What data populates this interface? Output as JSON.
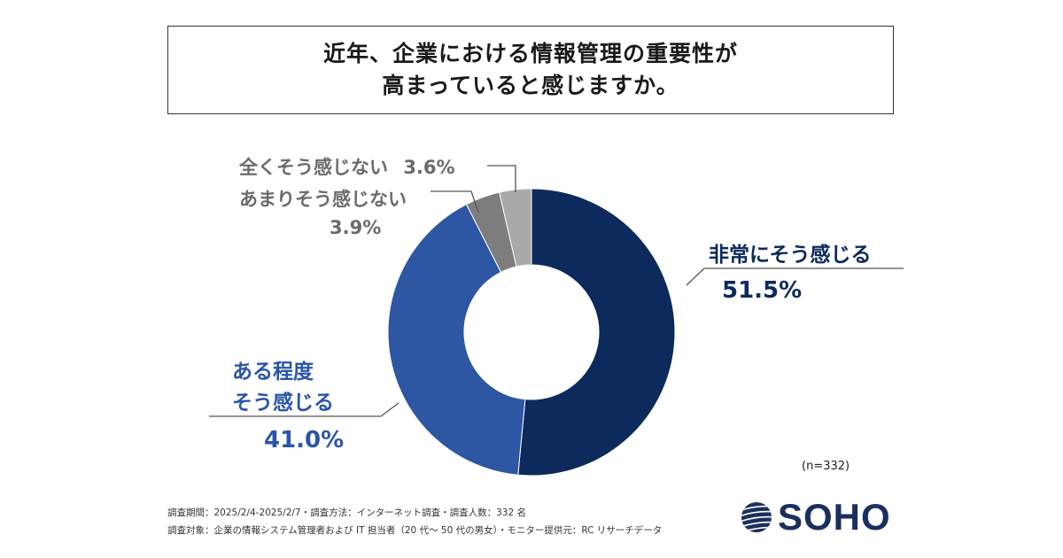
{
  "title": {
    "line1": "近年、企業における情報管理の重要性が",
    "line2": "高まっていると感じますか。"
  },
  "sample_note": "(n=332)",
  "footer": {
    "line1": "調査期間：2025/2/4-2025/2/7・調査方法：インターネット調査・調査人数：332 名",
    "line2": "調査対象：企業の情報システム管理者および IT 担当者（20 代〜 50 代の男女）・モニター提供元：RC リサーチデータ"
  },
  "logo": {
    "text": "SOHO",
    "color": "#1b2f5e"
  },
  "labels": {
    "very": {
      "name": "非常にそう感じる",
      "pct": "51.5%"
    },
    "somewhat": {
      "name1": "ある程度",
      "name2": "そう感じる",
      "pct": "41.0%"
    },
    "not_much": {
      "name": "あまりそう感じない",
      "pct": "3.9%"
    },
    "not_at_all": {
      "name": "全くそう感じない",
      "pct": "3.6%"
    }
  },
  "chart_data": {
    "type": "pie",
    "donut": true,
    "categories": [
      "非常にそう感じる",
      "ある程度そう感じる",
      "あまりそう感じない",
      "全くそう感じない"
    ],
    "values": [
      51.5,
      41.0,
      3.9,
      3.6
    ],
    "colors": [
      "#0d2a5c",
      "#2d56a3",
      "#7d7d7d",
      "#a9a9a9"
    ],
    "start": "12 o'clock, clockwise"
  }
}
